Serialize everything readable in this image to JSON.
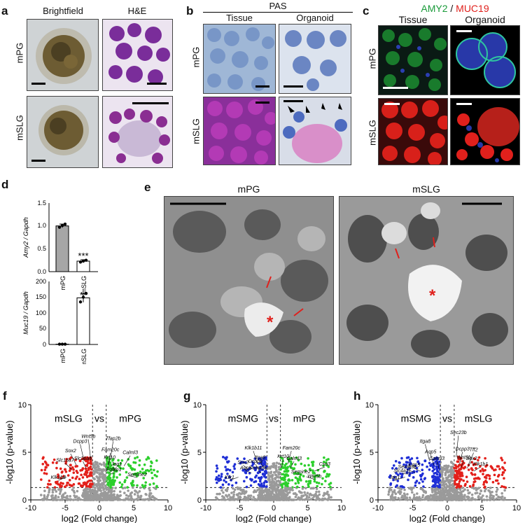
{
  "panel_a": {
    "label": "a",
    "headers": [
      "Brightfield",
      "H&E"
    ],
    "rows": [
      "mPG",
      "mSLG"
    ]
  },
  "panel_b": {
    "label": "b",
    "title": "PAS",
    "headers": [
      "Tissue",
      "Organoid"
    ],
    "rows": [
      "mPG",
      "mSLG"
    ]
  },
  "panel_c": {
    "label": "c",
    "stain_green": "AMY2",
    "stain_sep": " / ",
    "stain_red": "MUC19",
    "headers": [
      "Tissue",
      "Organoid"
    ],
    "rows": [
      "mPG",
      "mSLG"
    ],
    "colors": {
      "green": "#1a9b3a",
      "red": "#e0201c"
    }
  },
  "panel_d": {
    "label": "d",
    "colors": {
      "mPG": "#a6a6a6",
      "mSLG": "#ffffff"
    }
  },
  "panel_e": {
    "label": "e",
    "headers": [
      "mPG",
      "mSLG"
    ],
    "asterisk": "*"
  },
  "panel_f": {
    "label": "f",
    "title_left": "mSLG",
    "vs": "vs",
    "title_right": "mPG"
  },
  "panel_g": {
    "label": "g",
    "title_left": "mSMG",
    "vs": "vs",
    "title_right": "mPG"
  },
  "panel_h": {
    "label": "h",
    "title_left": "mSMG",
    "vs": "vs",
    "title_right": "mSLG"
  },
  "chart_data": [
    {
      "type": "bar",
      "id": "d_top",
      "categories": [
        "mPG",
        "mSLG"
      ],
      "values": [
        1.0,
        0.23
      ],
      "errors": [
        0.04,
        0.03
      ],
      "points": [
        [
          0.97,
          1.01,
          1.04
        ],
        [
          0.21,
          0.23,
          0.25
        ]
      ],
      "ylabel": "Amy2 / Gapdh",
      "ylim": [
        0,
        1.5
      ],
      "yticks": [
        "0.0",
        "0.5",
        "1.0",
        "1.5"
      ],
      "annotations": [
        {
          "category": "mSLG",
          "text": "***"
        }
      ]
    },
    {
      "type": "bar",
      "id": "d_bottom",
      "categories": [
        "mPG",
        "mSLG"
      ],
      "values": [
        1,
        148
      ],
      "errors": [
        0.5,
        14
      ],
      "points": [
        [
          1,
          1,
          1
        ],
        [
          135,
          150,
          162
        ]
      ],
      "ylabel": "Muc19 / Gapdh",
      "ylim": [
        0,
        200
      ],
      "yticks": [
        "0",
        "50",
        "100",
        "150",
        "200"
      ],
      "annotations": [
        {
          "category": "mSLG",
          "text": "**"
        }
      ]
    },
    {
      "type": "scatter",
      "id": "f_volcano",
      "title": "mSLG vs mPG",
      "xlabel": "log2 (Fold change)",
      "ylabel": "-log10 (p-value)",
      "xlim": [
        -10,
        10
      ],
      "ylim": [
        0,
        10
      ],
      "xticks": [
        "-10",
        "-5",
        "0",
        "5",
        "10"
      ],
      "yticks": [
        "0",
        "5",
        "10"
      ],
      "threshold_x": [
        -1,
        1
      ],
      "threshold_y": 1.3,
      "down_color": "#e3201b",
      "up_color": "#2ccf2c",
      "genes": [
        {
          "name": "Wnt5b",
          "x": -1.6,
          "y": 6.5
        },
        {
          "name": "Dcpp3",
          "x": -2.8,
          "y": 6.0
        },
        {
          "name": "Sox2",
          "x": -4.2,
          "y": 5.0
        },
        {
          "name": "Slc26a6",
          "x": -2.4,
          "y": 4.2
        },
        {
          "name": "Slc16a7",
          "x": -5.0,
          "y": 4.0
        },
        {
          "name": "Klk1b8",
          "x": -6.0,
          "y": 2.2
        },
        {
          "name": "Tfap2b",
          "x": 2.0,
          "y": 6.3
        },
        {
          "name": "Fam20c",
          "x": 1.6,
          "y": 5.1
        },
        {
          "name": "Krt10",
          "x": 1.5,
          "y": 4.3
        },
        {
          "name": "Jag1",
          "x": 2.5,
          "y": 3.6
        },
        {
          "name": "Fgfbp1",
          "x": 2.1,
          "y": 3.0
        },
        {
          "name": "Calml3",
          "x": 4.5,
          "y": 4.8
        },
        {
          "name": "Semine2",
          "x": 5.5,
          "y": 2.5
        }
      ]
    },
    {
      "type": "scatter",
      "id": "g_volcano",
      "title": "mSMG vs mPG",
      "xlabel": "log2 (Fold change)",
      "ylabel": "-log10 (p-value)",
      "xlim": [
        -10,
        10
      ],
      "ylim": [
        0,
        10
      ],
      "xticks": [
        "-10",
        "-5",
        "0",
        "5",
        "10"
      ],
      "yticks": [
        "0",
        "5",
        "10"
      ],
      "threshold_x": [
        -1,
        1
      ],
      "threshold_y": 1.3,
      "down_color": "#1f2fd6",
      "up_color": "#2ccf2c",
      "genes": [
        {
          "name": "Klk1b11",
          "x": -3.0,
          "y": 5.3
        },
        {
          "name": "Itga8",
          "x": -2.0,
          "y": 4.3
        },
        {
          "name": "Dcpp3",
          "x": -2.7,
          "y": 3.9
        },
        {
          "name": "Sema3b",
          "x": -2.3,
          "y": 3.2
        },
        {
          "name": "Sox2",
          "x": -4.5,
          "y": 3.8
        },
        {
          "name": "Aqp5",
          "x": -4.1,
          "y": 3.2
        },
        {
          "name": "Klk1",
          "x": -6.5,
          "y": 2.2
        },
        {
          "name": "Fam20c",
          "x": 2.6,
          "y": 5.3
        },
        {
          "name": "Krt10",
          "x": 1.4,
          "y": 4.4
        },
        {
          "name": "Calml3",
          "x": 3.0,
          "y": 4.2
        },
        {
          "name": "Serpine2",
          "x": 4.0,
          "y": 2.8
        },
        {
          "name": "Wnt5b",
          "x": 6.0,
          "y": 2.3
        },
        {
          "name": "Csn3",
          "x": 7.5,
          "y": 3.6
        }
      ]
    },
    {
      "type": "scatter",
      "id": "h_volcano",
      "title": "mSMG vs mSLG",
      "xlabel": "log2 (Fold change)",
      "ylabel": "-log10 (p-value)",
      "xlim": [
        -10,
        10
      ],
      "ylim": [
        0,
        10
      ],
      "xticks": [
        "-10",
        "-5",
        "0",
        "5",
        "10"
      ],
      "yticks": [
        "0",
        "5",
        "10"
      ],
      "threshold_x": [
        -1,
        1
      ],
      "threshold_y": 1.3,
      "down_color": "#1f2fd6",
      "up_color": "#e3201b",
      "genes": [
        {
          "name": "Itga8",
          "x": -3.2,
          "y": 6.0
        },
        {
          "name": "Aqp5",
          "x": -2.4,
          "y": 4.9
        },
        {
          "name": "Calml3",
          "x": -1.5,
          "y": 4.2
        },
        {
          "name": "Krt15",
          "x": -4.8,
          "y": 3.5
        },
        {
          "name": "Sema3b",
          "x": -5.8,
          "y": 3.3
        },
        {
          "name": "Slc4a11",
          "x": -6.5,
          "y": 2.9
        },
        {
          "name": "Jag1",
          "x": -7.6,
          "y": 2.2
        },
        {
          "name": "Sec23b",
          "x": 1.6,
          "y": 6.9
        },
        {
          "name": "Dcpp3",
          "x": 2.2,
          "y": 5.2
        },
        {
          "name": "Tff2",
          "x": 3.8,
          "y": 5.1
        },
        {
          "name": "Wnt5b",
          "x": 2.4,
          "y": 4.3
        },
        {
          "name": "Sox2",
          "x": 3.5,
          "y": 4.2
        },
        {
          "name": "Klk1b1",
          "x": 4.8,
          "y": 3.6
        }
      ]
    }
  ]
}
